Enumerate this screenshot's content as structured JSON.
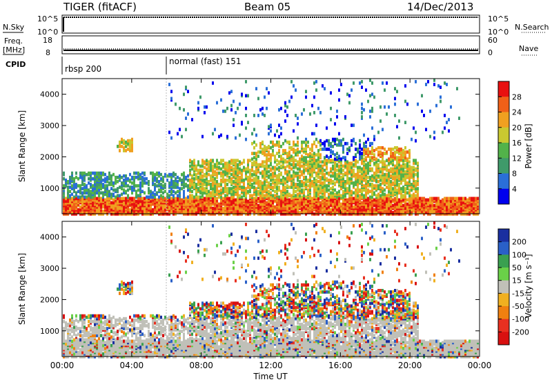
{
  "header": {
    "title": "TIGER (fitACF)",
    "beam": "Beam 05",
    "date": "14/Dec/2013"
  },
  "status": {
    "nsky_label": "N.Sky",
    "nsky_ticks": [
      "10^5",
      "10^0"
    ],
    "nsearch_label": "N.Search",
    "nsearch_ticks": [
      "10^5",
      "10^0"
    ],
    "freq_label_1": "Freq.",
    "freq_label_2": "[MHz]",
    "freq_ticks": [
      "18",
      "8"
    ],
    "nave_label": "Nave",
    "nave_ticks": [
      "60",
      "0"
    ],
    "cpid_label": "CPID",
    "cpid_segments": [
      "rbsp 200",
      "normal (fast) 151"
    ]
  },
  "chart_data": [
    {
      "type": "heatmap",
      "name": "power",
      "ylabel": "Slant Range [km]",
      "ylim": [
        180,
        4500
      ],
      "yticks": [
        1000,
        2000,
        3000,
        4000
      ],
      "colorbar": {
        "label": "Power [dB]",
        "ticks": [
          4,
          8,
          12,
          16,
          20,
          24,
          28
        ],
        "colors": [
          "#0000ee",
          "#2a6fd8",
          "#3f9a6a",
          "#52b24a",
          "#c9c830",
          "#f0a020",
          "#f06018",
          "#e81010"
        ]
      }
    },
    {
      "type": "heatmap",
      "name": "velocity",
      "ylabel": "Slant Range [km]",
      "ylim": [
        180,
        4500
      ],
      "yticks": [
        1000,
        2000,
        3000,
        4000
      ],
      "xlabel": "Time UT",
      "xticks": [
        "00:00",
        "04:00",
        "08:00",
        "12:00",
        "16:00",
        "20:00",
        "00:00"
      ],
      "colorbar": {
        "label": "Velocity [m s⁻¹]",
        "ticks": [
          200,
          100,
          50,
          15,
          -15,
          -50,
          -100,
          -200
        ],
        "colors": [
          "#1a2fa0",
          "#2a60c8",
          "#3aa050",
          "#6ad048",
          "#c0c0b8",
          "#f0b020",
          "#f08010",
          "#e83020",
          "#d81010"
        ]
      }
    }
  ]
}
